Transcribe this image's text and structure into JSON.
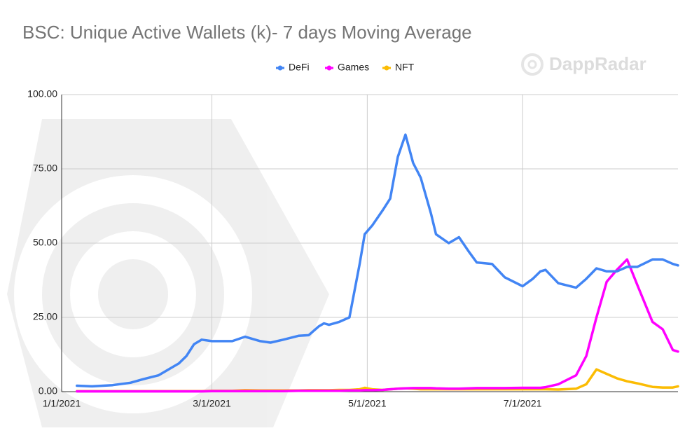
{
  "watermark": "DappRadar",
  "chart_data": {
    "type": "line",
    "title": "BSC: Unique Active Wallets (k)- 7 days Moving Average",
    "x": [
      "1/7/2021",
      "1/13/2021",
      "1/21/2021",
      "1/28/2021",
      "2/2/2021",
      "2/8/2021",
      "2/12/2021",
      "2/16/2021",
      "2/19/2021",
      "2/22/2021",
      "2/25/2021",
      "3/1/2021",
      "3/9/2021",
      "3/14/2021",
      "3/20/2021",
      "3/24/2021",
      "3/29/2021",
      "4/4/2021",
      "4/8/2021",
      "4/12/2021",
      "4/14/2021",
      "4/16/2021",
      "4/20/2021",
      "4/24/2021",
      "4/28/2021",
      "4/30/2021",
      "5/3/2021",
      "5/7/2021",
      "5/10/2021",
      "5/13/2021",
      "5/16/2021",
      "5/19/2021",
      "5/22/2021",
      "5/26/2021",
      "5/28/2021",
      "6/2/2021",
      "6/6/2021",
      "6/10/2021",
      "6/13/2021",
      "6/19/2021",
      "6/24/2021",
      "7/1/2021",
      "7/5/2021",
      "7/8/2021",
      "7/10/2021",
      "7/15/2021",
      "7/22/2021",
      "7/26/2021",
      "7/30/2021",
      "8/3/2021",
      "8/7/2021",
      "8/11/2021",
      "8/15/2021",
      "8/21/2021",
      "8/25/2021",
      "8/29/2021",
      "8/31/2021"
    ],
    "series": [
      {
        "name": "DeFi",
        "color": "#4285f4",
        "values": [
          2.0,
          1.8,
          2.2,
          3.0,
          4.2,
          5.5,
          7.5,
          9.5,
          12,
          16,
          17.5,
          17,
          17,
          18.5,
          17,
          16.5,
          17.5,
          18.8,
          19,
          22,
          23,
          22.5,
          23.5,
          25,
          43,
          53,
          56,
          61,
          65,
          79,
          86.5,
          77,
          72,
          60,
          53,
          50,
          52,
          47,
          43.5,
          43,
          38.5,
          35.5,
          38,
          40.5,
          41,
          36.5,
          35,
          38,
          41.5,
          40.5,
          40.5,
          42,
          42,
          44.5,
          44.5,
          43,
          42.5
        ]
      },
      {
        "name": "Games",
        "color": "#ff00ff",
        "values": [
          0.1,
          0.1,
          0.1,
          0.1,
          0.1,
          0.1,
          0.1,
          0.1,
          0.1,
          0.1,
          0.1,
          0.2,
          0.2,
          0.2,
          0.2,
          0.2,
          0.2,
          0.3,
          0.3,
          0.3,
          0.3,
          0.3,
          0.3,
          0.4,
          0.4,
          0.5,
          0.5,
          0.6,
          0.8,
          1.0,
          1.1,
          1.2,
          1.2,
          1.2,
          1.1,
          1.0,
          1.0,
          1.1,
          1.2,
          1.2,
          1.2,
          1.3,
          1.3,
          1.3,
          1.5,
          2.5,
          5.5,
          12,
          25,
          37,
          41,
          44.5,
          36,
          23.5,
          21,
          14,
          13.5
        ]
      },
      {
        "name": "NFT",
        "color": "#fbbc04",
        "values": [
          0.2,
          0.2,
          0.2,
          0.2,
          0.2,
          0.2,
          0.2,
          0.2,
          0.2,
          0.2,
          0.2,
          0.3,
          0.3,
          0.5,
          0.4,
          0.4,
          0.4,
          0.4,
          0.5,
          0.5,
          0.5,
          0.5,
          0.6,
          0.6,
          0.8,
          1.3,
          0.8,
          0.6,
          0.8,
          1.0,
          1.1,
          1.0,
          0.8,
          0.8,
          0.8,
          0.8,
          0.8,
          0.8,
          0.8,
          0.8,
          0.8,
          0.8,
          0.8,
          0.8,
          0.8,
          0.7,
          1.0,
          2.5,
          7.5,
          6,
          4.5,
          3.5,
          2.8,
          1.6,
          1.4,
          1.4,
          1.8
        ]
      }
    ],
    "xlim": [
      "1/1/2021",
      "8/31/2021"
    ],
    "xticks": [
      "1/1/2021",
      "3/1/2021",
      "5/1/2021",
      "7/1/2021"
    ],
    "ylim": [
      0,
      100
    ],
    "yticks": [
      {
        "value": 0,
        "label": "0.00"
      },
      {
        "value": 25,
        "label": "25.00"
      },
      {
        "value": 50,
        "label": "50.00"
      },
      {
        "value": 75,
        "label": "75.00"
      },
      {
        "value": 100,
        "label": "100.00"
      }
    ],
    "grid": true,
    "legend": "top"
  }
}
